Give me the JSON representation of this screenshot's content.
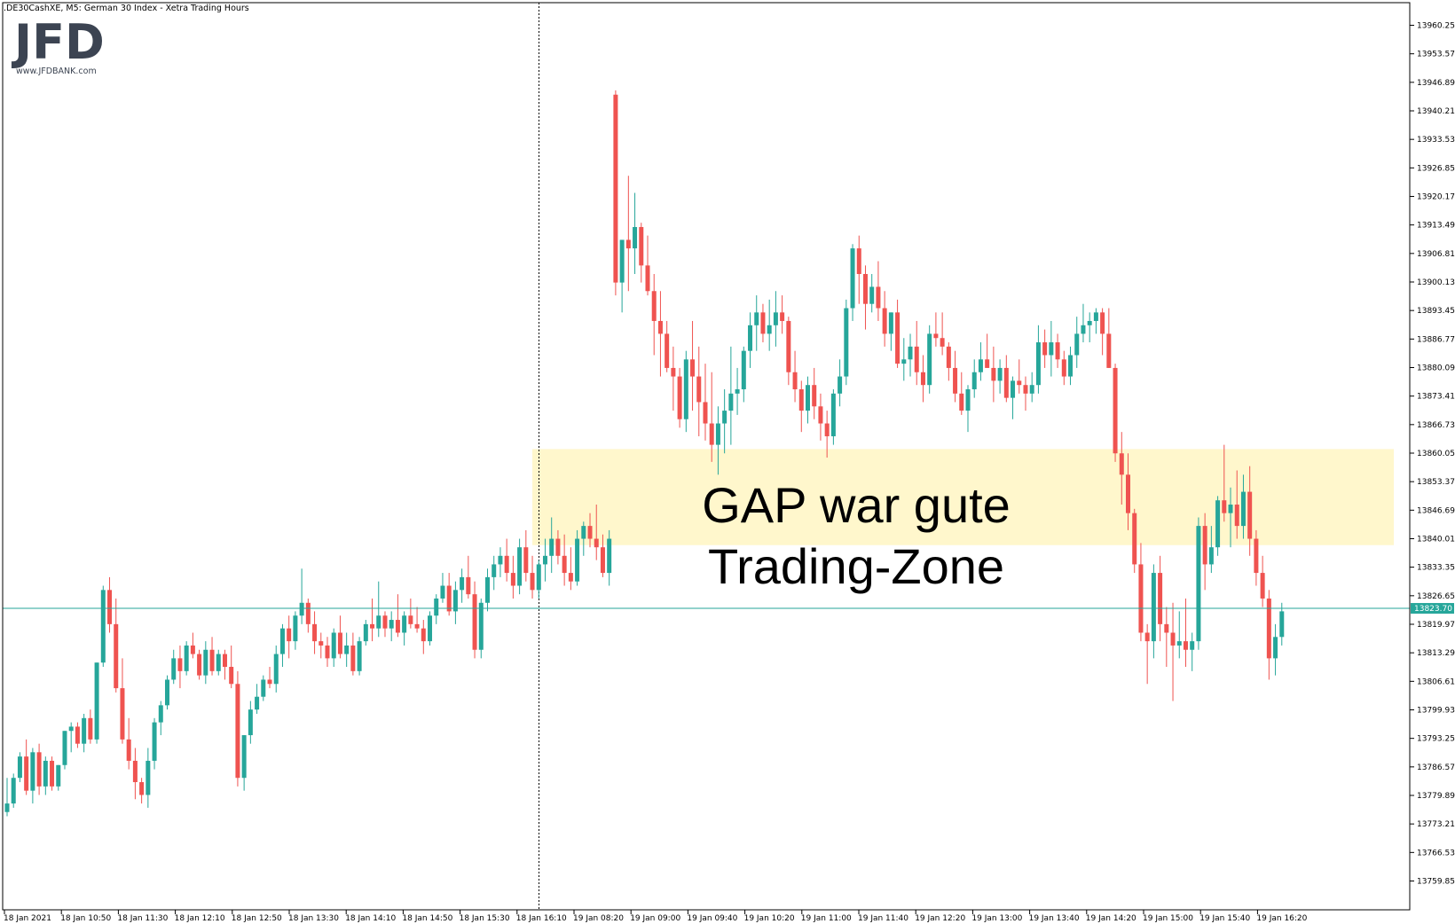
{
  "header": {
    "symbol_info": ".DE30CashXE, M5:  German 30 Index  - Xetra Trading Hours"
  },
  "logo": {
    "text": "JFD",
    "url_text": "www.JFDBANK.com"
  },
  "current_price": {
    "label": "13823.70",
    "value": 13823.7
  },
  "annotation": {
    "line1": "GAP war gute",
    "line2": "Trading-Zone",
    "zone_low": 13838.5,
    "zone_high": 13861.0
  },
  "colors": {
    "bull": "#26a69a",
    "bear": "#ef5350",
    "zone_fill": "#fff7cc",
    "price_line": "#26a69a",
    "axis": "#000000"
  },
  "chart_data": {
    "type": "candlestick",
    "title": "",
    "ylim": [
      13755,
      13965
    ],
    "y_ticks": [
      "13960.25",
      "13953.57",
      "13946.89",
      "13940.21",
      "13933.53",
      "13926.85",
      "13920.17",
      "13913.49",
      "13906.81",
      "13900.13",
      "13893.45",
      "13886.77",
      "13880.09",
      "13873.41",
      "13866.73",
      "13860.05",
      "13853.37",
      "13846.69",
      "13840.01",
      "13833.35",
      "13826.65",
      "13819.97",
      "13813.29",
      "13806.61",
      "13799.93",
      "13793.25",
      "13786.57",
      "13779.89",
      "13773.21",
      "13766.53",
      "13759.85"
    ],
    "x_ticks": [
      "18 Jan 2021",
      "18 Jan 10:50",
      "18 Jan 11:30",
      "18 Jan 12:10",
      "18 Jan 12:50",
      "18 Jan 13:30",
      "18 Jan 14:10",
      "18 Jan 14:50",
      "18 Jan 15:30",
      "18 Jan 16:10",
      "19 Jan 08:20",
      "19 Jan 09:00",
      "19 Jan 09:40",
      "19 Jan 10:20",
      "19 Jan 11:00",
      "19 Jan 11:40",
      "19 Jan 12:20",
      "19 Jan 13:00",
      "19 Jan 13:40",
      "19 Jan 14:20",
      "19 Jan 15:00",
      "19 Jan 15:40",
      "19 Jan 16:20"
    ],
    "session_break_index": 95,
    "ohlc": [
      [
        13776,
        13784,
        13775,
        13778
      ],
      [
        13778,
        13785,
        13777,
        13784
      ],
      [
        13784,
        13790,
        13783,
        13789
      ],
      [
        13789,
        13793,
        13780,
        13781
      ],
      [
        13781,
        13791,
        13778,
        13790
      ],
      [
        13790,
        13792,
        13780,
        13782
      ],
      [
        13782,
        13789,
        13780,
        13788
      ],
      [
        13788,
        13789,
        13781,
        13782
      ],
      [
        13782,
        13787,
        13781,
        13787
      ],
      [
        13787,
        13795,
        13786,
        13795
      ],
      [
        13795,
        13797,
        13790,
        13796
      ],
      [
        13796,
        13797,
        13791,
        13792
      ],
      [
        13792,
        13799,
        13790,
        13798
      ],
      [
        13798,
        13800,
        13792,
        13793
      ],
      [
        13793,
        13811,
        13792,
        13811
      ],
      [
        13811,
        13829,
        13810,
        13828
      ],
      [
        13828,
        13831,
        13818,
        13820
      ],
      [
        13820,
        13826,
        13804,
        13805
      ],
      [
        13805,
        13812,
        13792,
        13793
      ],
      [
        13793,
        13798,
        13786,
        13788
      ],
      [
        13788,
        13791,
        13779,
        13783
      ],
      [
        13783,
        13784,
        13778,
        13780
      ],
      [
        13780,
        13791,
        13777,
        13788
      ],
      [
        13788,
        13798,
        13786,
        13797
      ],
      [
        13797,
        13802,
        13794,
        13801
      ],
      [
        13801,
        13808,
        13800,
        13807
      ],
      [
        13807,
        13814,
        13806,
        13812
      ],
      [
        13812,
        13815,
        13805,
        13809
      ],
      [
        13809,
        13816,
        13808,
        13815
      ],
      [
        13815,
        13818,
        13812,
        13813
      ],
      [
        13813,
        13814,
        13807,
        13808
      ],
      [
        13808,
        13816,
        13806,
        13814
      ],
      [
        13814,
        13817,
        13808,
        13809
      ],
      [
        13809,
        13814,
        13808,
        13813
      ],
      [
        13813,
        13814,
        13807,
        13810
      ],
      [
        13810,
        13815,
        13805,
        13806
      ],
      [
        13806,
        13809,
        13782,
        13784
      ],
      [
        13784,
        13794,
        13781,
        13794
      ],
      [
        13794,
        13802,
        13792,
        13800
      ],
      [
        13800,
        13806,
        13799,
        13803
      ],
      [
        13803,
        13808,
        13802,
        13807
      ],
      [
        13807,
        13810,
        13805,
        13806
      ],
      [
        13806,
        13815,
        13804,
        13813
      ],
      [
        13813,
        13820,
        13810,
        13819
      ],
      [
        13819,
        13822,
        13812,
        13816
      ],
      [
        13816,
        13823,
        13814,
        13822
      ],
      [
        13822,
        13833,
        13820,
        13825
      ],
      [
        13825,
        13826,
        13818,
        13820
      ],
      [
        13820,
        13823,
        13813,
        13816
      ],
      [
        13816,
        13818,
        13812,
        13815
      ],
      [
        13815,
        13817,
        13810,
        13812
      ],
      [
        13812,
        13819,
        13810,
        13818
      ],
      [
        13818,
        13822,
        13812,
        13813
      ],
      [
        13813,
        13818,
        13810,
        13815
      ],
      [
        13815,
        13818,
        13808,
        13809
      ],
      [
        13809,
        13817,
        13808,
        13816
      ],
      [
        13816,
        13821,
        13815,
        13820
      ],
      [
        13820,
        13826,
        13816,
        13819
      ],
      [
        13819,
        13830,
        13817,
        13822
      ],
      [
        13822,
        13823,
        13817,
        13819
      ],
      [
        13819,
        13823,
        13816,
        13821
      ],
      [
        13821,
        13827,
        13817,
        13818
      ],
      [
        13818,
        13823,
        13815,
        13822
      ],
      [
        13822,
        13826,
        13819,
        13820
      ],
      [
        13820,
        13824,
        13818,
        13819
      ],
      [
        13819,
        13821,
        13813,
        13816
      ],
      [
        13816,
        13823,
        13815,
        13822
      ],
      [
        13822,
        13827,
        13820,
        13826
      ],
      [
        13826,
        13832,
        13825,
        13829
      ],
      [
        13829,
        13832,
        13822,
        13823
      ],
      [
        13823,
        13830,
        13820,
        13828
      ],
      [
        13828,
        13833,
        13825,
        13831
      ],
      [
        13831,
        13836,
        13826,
        13827
      ],
      [
        13827,
        13830,
        13812,
        13814
      ],
      [
        13814,
        13826,
        13812,
        13825
      ],
      [
        13825,
        13833,
        13823,
        13831
      ],
      [
        13831,
        13836,
        13828,
        13834
      ],
      [
        13834,
        13838,
        13831,
        13836
      ],
      [
        13836,
        13840,
        13830,
        13832
      ],
      [
        13832,
        13836,
        13826,
        13829
      ],
      [
        13829,
        13840,
        13827,
        13838
      ],
      [
        13838,
        13842,
        13830,
        13832
      ],
      [
        13832,
        13836,
        13826,
        13828
      ],
      [
        13828,
        13835,
        13826,
        13834
      ],
      [
        13834,
        13840,
        13830,
        13836
      ],
      [
        13836,
        13845,
        13832,
        13840
      ],
      [
        13840,
        13842,
        13834,
        13836
      ],
      [
        13836,
        13841,
        13829,
        13832
      ],
      [
        13832,
        13838,
        13828,
        13830
      ],
      [
        13830,
        13842,
        13829,
        13840
      ],
      [
        13840,
        13844,
        13836,
        13843
      ],
      [
        13843,
        13846,
        13838,
        13840
      ],
      [
        13840,
        13848,
        13835,
        13838
      ],
      [
        13838,
        13841,
        13831,
        13832
      ],
      [
        13832,
        13842,
        13829,
        13840
      ],
      [
        13944,
        13945,
        13897,
        13900
      ],
      [
        13900,
        13910,
        13893,
        13910
      ],
      [
        13910,
        13925,
        13898,
        13908
      ],
      [
        13908,
        13921,
        13902,
        13913
      ],
      [
        13913,
        13914,
        13900,
        13904
      ],
      [
        13904,
        13911,
        13897,
        13898
      ],
      [
        13898,
        13902,
        13883,
        13891
      ],
      [
        13891,
        13898,
        13878,
        13888
      ],
      [
        13888,
        13891,
        13879,
        13880
      ],
      [
        13880,
        13885,
        13870,
        13878
      ],
      [
        13878,
        13880,
        13866,
        13868
      ],
      [
        13868,
        13884,
        13865,
        13882
      ],
      [
        13882,
        13891,
        13870,
        13878
      ],
      [
        13878,
        13885,
        13864,
        13872
      ],
      [
        13872,
        13881,
        13863,
        13867
      ],
      [
        13867,
        13879,
        13858,
        13862
      ],
      [
        13862,
        13871,
        13855,
        13867
      ],
      [
        13867,
        13875,
        13860,
        13870
      ],
      [
        13870,
        13885,
        13862,
        13874
      ],
      [
        13874,
        13880,
        13869,
        13875
      ],
      [
        13875,
        13885,
        13872,
        13884
      ],
      [
        13884,
        13893,
        13880,
        13890
      ],
      [
        13890,
        13897,
        13884,
        13893
      ],
      [
        13893,
        13895,
        13886,
        13888
      ],
      [
        13888,
        13896,
        13884,
        13890
      ],
      [
        13890,
        13898,
        13885,
        13893
      ],
      [
        13893,
        13897,
        13888,
        13891
      ],
      [
        13891,
        13892,
        13876,
        13879
      ],
      [
        13879,
        13884,
        13872,
        13875
      ],
      [
        13875,
        13877,
        13865,
        13870
      ],
      [
        13870,
        13878,
        13867,
        13876
      ],
      [
        13876,
        13880,
        13868,
        13871
      ],
      [
        13871,
        13874,
        13863,
        13867
      ],
      [
        13867,
        13870,
        13859,
        13864
      ],
      [
        13864,
        13875,
        13862,
        13874
      ],
      [
        13874,
        13882,
        13871,
        13878
      ],
      [
        13878,
        13896,
        13876,
        13894
      ],
      [
        13894,
        13909,
        13891,
        13908
      ],
      [
        13908,
        13911,
        13895,
        13902
      ],
      [
        13902,
        13904,
        13889,
        13895
      ],
      [
        13895,
        13902,
        13893,
        13899
      ],
      [
        13899,
        13905,
        13891,
        13894
      ],
      [
        13894,
        13898,
        13885,
        13888
      ],
      [
        13888,
        13893,
        13884,
        13893
      ],
      [
        13893,
        13896,
        13880,
        13881
      ],
      [
        13881,
        13887,
        13877,
        13882
      ],
      [
        13882,
        13888,
        13878,
        13885
      ],
      [
        13885,
        13891,
        13876,
        13879
      ],
      [
        13879,
        13883,
        13872,
        13876
      ],
      [
        13876,
        13890,
        13874,
        13888
      ],
      [
        13888,
        13893,
        13885,
        13887
      ],
      [
        13887,
        13893,
        13883,
        13885
      ],
      [
        13885,
        13886,
        13877,
        13880
      ],
      [
        13880,
        13884,
        13872,
        13874
      ],
      [
        13874,
        13879,
        13869,
        13870
      ],
      [
        13870,
        13876,
        13865,
        13875
      ],
      [
        13875,
        13882,
        13873,
        13879
      ],
      [
        13879,
        13886,
        13877,
        13882
      ],
      [
        13882,
        13888,
        13880,
        13880
      ],
      [
        13880,
        13885,
        13872,
        13877
      ],
      [
        13877,
        13882,
        13874,
        13880
      ],
      [
        13880,
        13883,
        13872,
        13873
      ],
      [
        13873,
        13878,
        13868,
        13877
      ],
      [
        13877,
        13882,
        13874,
        13876
      ],
      [
        13876,
        13878,
        13870,
        13874
      ],
      [
        13874,
        13879,
        13872,
        13876
      ],
      [
        13876,
        13890,
        13874,
        13886
      ],
      [
        13886,
        13889,
        13880,
        13883
      ],
      [
        13883,
        13891,
        13878,
        13886
      ],
      [
        13886,
        13888,
        13880,
        13882
      ],
      [
        13882,
        13884,
        13876,
        13878
      ],
      [
        13878,
        13885,
        13876,
        13883
      ],
      [
        13883,
        13892,
        13880,
        13888
      ],
      [
        13888,
        13895,
        13886,
        13890
      ],
      [
        13890,
        13893,
        13886,
        13891
      ],
      [
        13891,
        13894,
        13888,
        13893
      ],
      [
        13893,
        13894,
        13883,
        13888
      ],
      [
        13888,
        13894,
        13880,
        13880
      ],
      [
        13880,
        13881,
        13858,
        13860
      ],
      [
        13860,
        13865,
        13848,
        13855
      ],
      [
        13855,
        13860,
        13842,
        13846
      ],
      [
        13846,
        13847,
        13832,
        13834
      ],
      [
        13834,
        13839,
        13816,
        13818
      ],
      [
        13818,
        13820,
        13806,
        13816
      ],
      [
        13816,
        13834,
        13812,
        13832
      ],
      [
        13832,
        13836,
        13816,
        13820
      ],
      [
        13820,
        13824,
        13810,
        13818
      ],
      [
        13818,
        13825,
        13802,
        13815
      ],
      [
        13815,
        13823,
        13812,
        13816
      ],
      [
        13816,
        13826,
        13810,
        13814
      ],
      [
        13814,
        13818,
        13809,
        13816
      ],
      [
        13816,
        13845,
        13814,
        13843
      ],
      [
        13843,
        13846,
        13828,
        13834
      ],
      [
        13834,
        13843,
        13832,
        13838
      ],
      [
        13838,
        13850,
        13836,
        13849
      ],
      [
        13849,
        13862,
        13844,
        13846
      ],
      [
        13846,
        13852,
        13838,
        13848
      ],
      [
        13848,
        13856,
        13840,
        13843
      ],
      [
        13843,
        13855,
        13840,
        13851
      ],
      [
        13851,
        13857,
        13836,
        13840
      ],
      [
        13840,
        13842,
        13829,
        13832
      ],
      [
        13832,
        13836,
        13824,
        13826
      ],
      [
        13826,
        13828,
        13807,
        13812
      ],
      [
        13812,
        13820,
        13808,
        13817
      ],
      [
        13817,
        13825,
        13815,
        13823
      ]
    ]
  }
}
